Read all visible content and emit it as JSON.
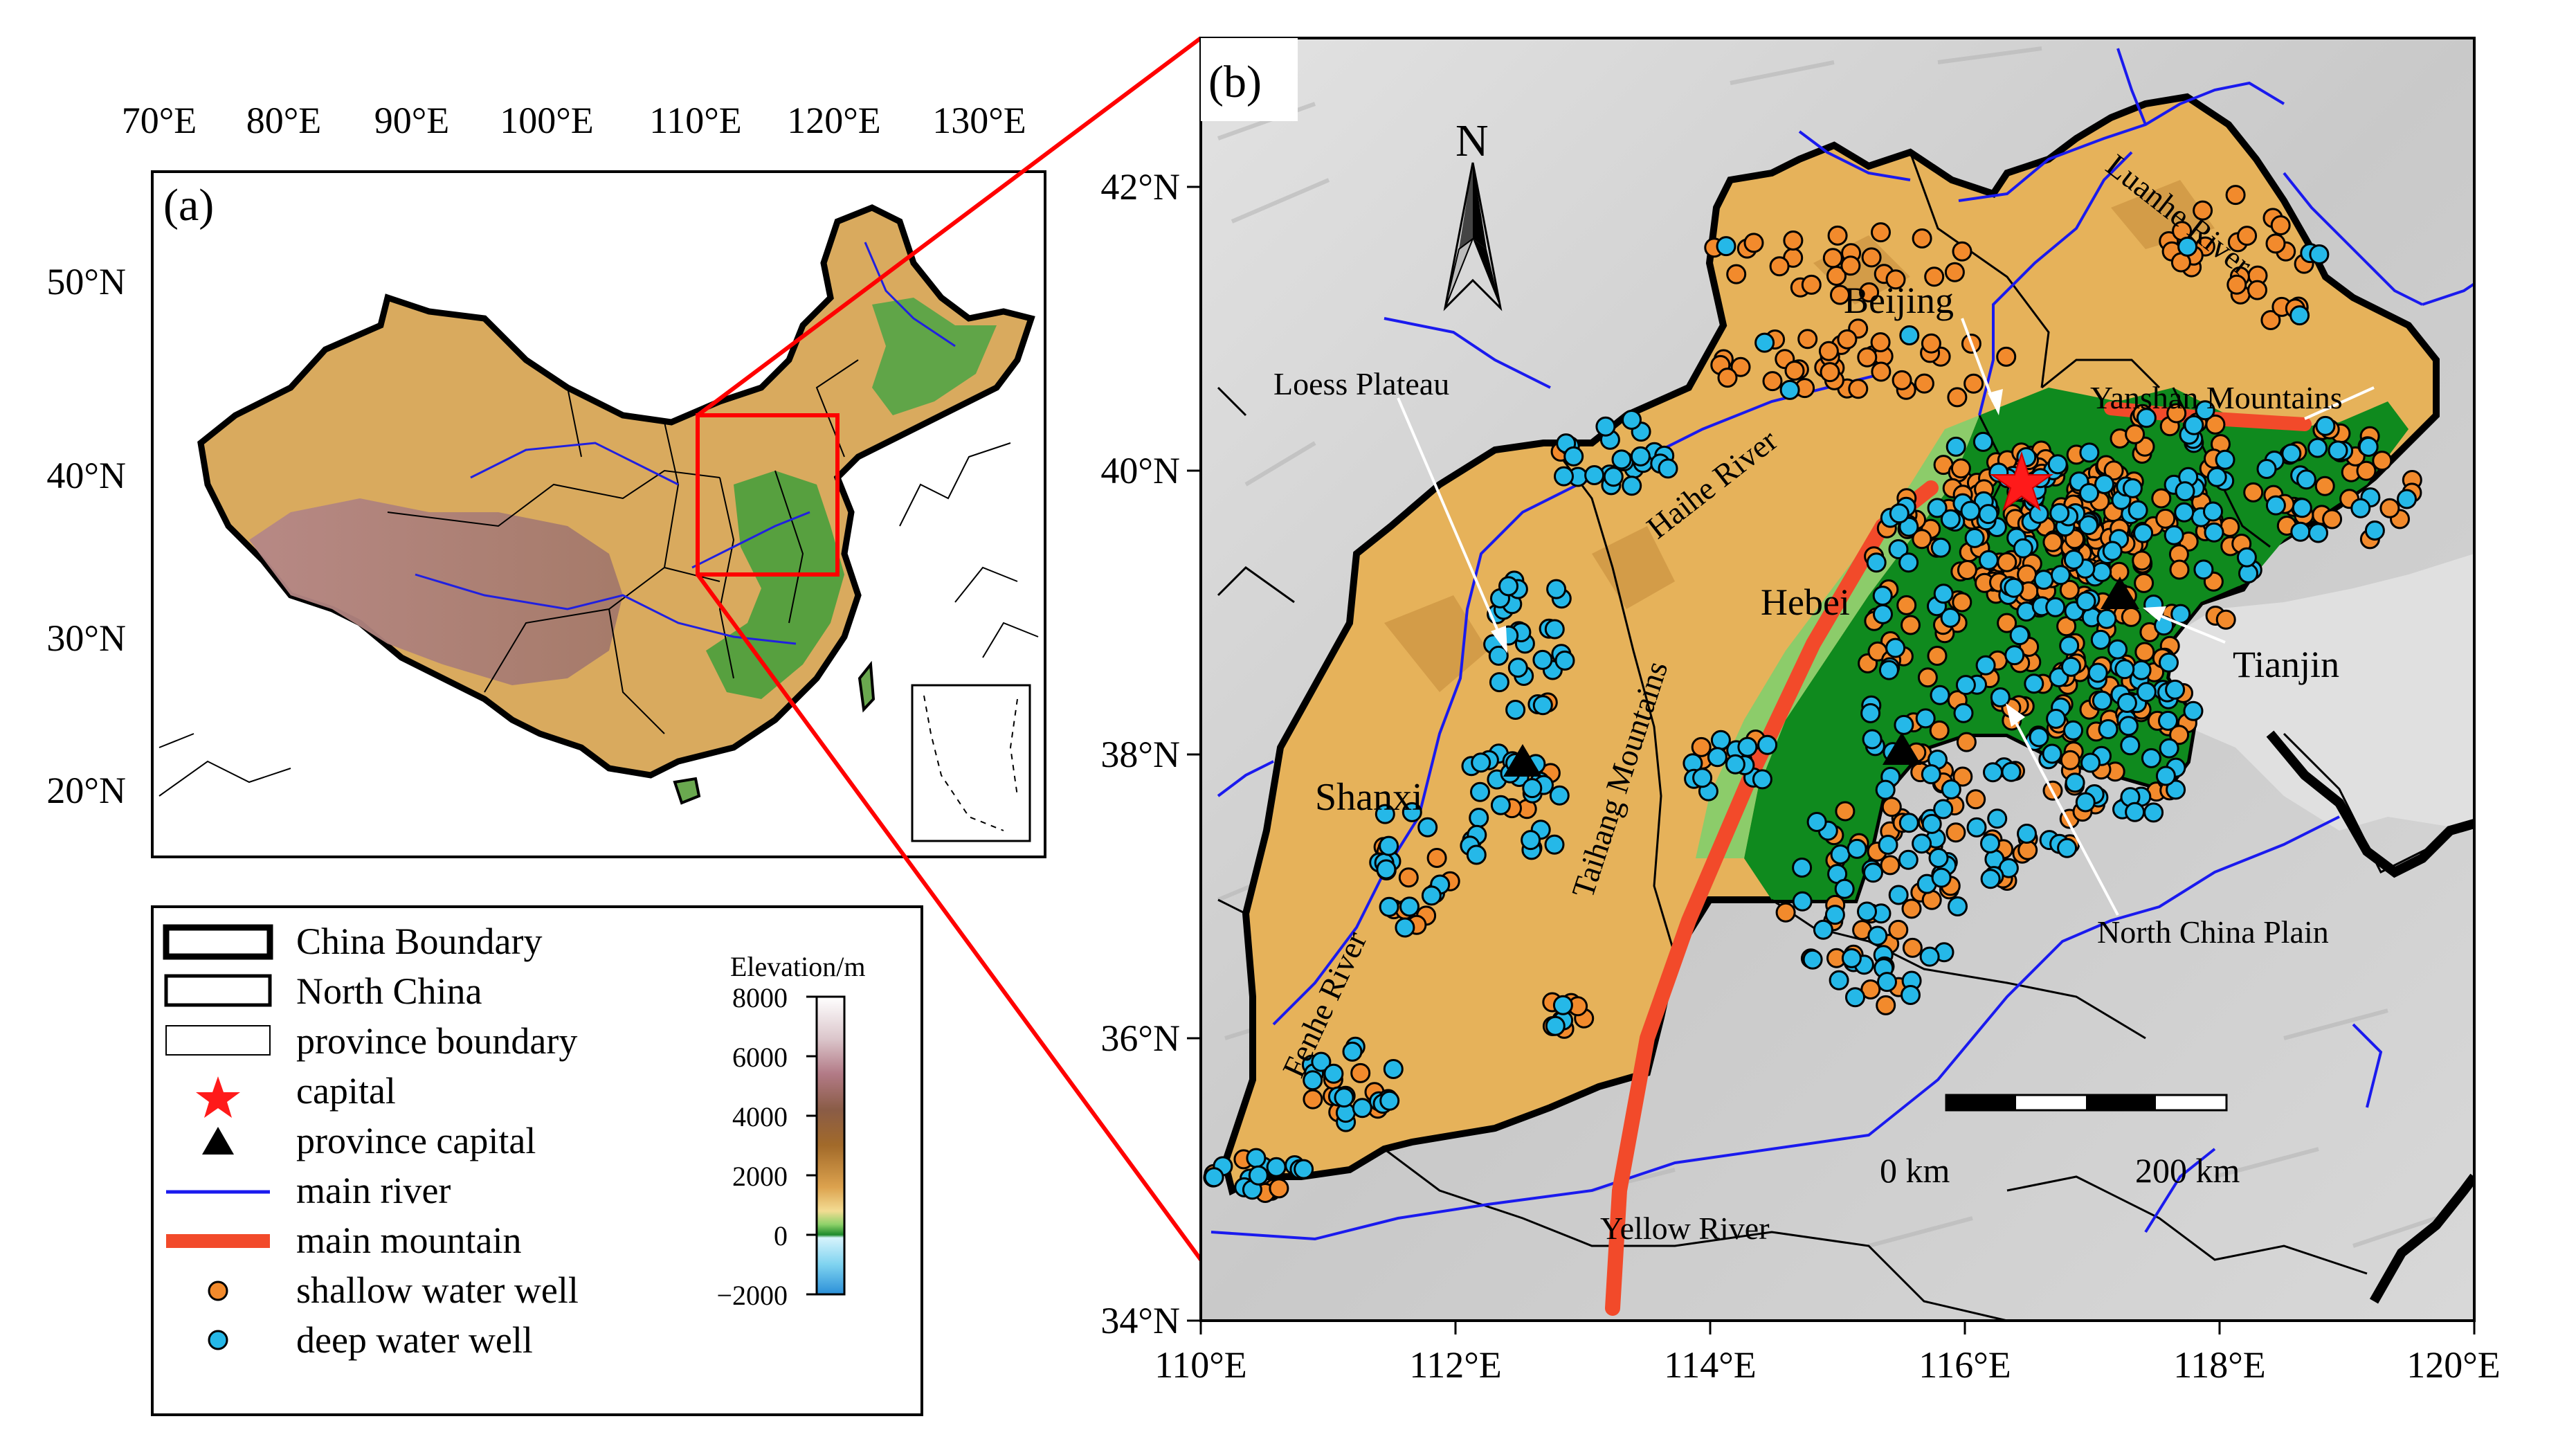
{
  "panel_a": {
    "label": "(a)",
    "lon_ticks": [
      "70°E",
      "80°E",
      "90°E",
      "100°E",
      "110°E",
      "120°E",
      "130°E"
    ],
    "lat_ticks": [
      "50°N",
      "40°N",
      "30°N",
      "20°N"
    ]
  },
  "legend": {
    "items": [
      {
        "symbol": "china-boundary",
        "label": "China Boundary"
      },
      {
        "symbol": "north-china",
        "label": "North China"
      },
      {
        "symbol": "province-boundary",
        "label": "province boundary"
      },
      {
        "symbol": "capital-star",
        "label": "capital"
      },
      {
        "symbol": "province-capital-triangle",
        "label": "province capital"
      },
      {
        "symbol": "main-river-line",
        "label": "main river"
      },
      {
        "symbol": "main-mountain-line",
        "label": "main mountain"
      },
      {
        "symbol": "shallow-well-dot",
        "label": "shallow water well"
      },
      {
        "symbol": "deep-well-dot",
        "label": "deep water well"
      }
    ],
    "colorbar": {
      "title": "Elevation/m",
      "ticks": [
        "8000",
        "6000",
        "4000",
        "2000",
        "0",
        "−2000"
      ]
    }
  },
  "panel_b": {
    "label": "(b)",
    "north_label": "N",
    "lat_ticks": [
      "42°N",
      "40°N",
      "38°N",
      "36°N",
      "34°N"
    ],
    "lon_ticks": [
      "110°E",
      "112°E",
      "114°E",
      "116°E",
      "118°E",
      "120°E"
    ],
    "place_labels": {
      "beijing": "Beijing",
      "hebei": "Hebei",
      "tianjin": "Tianjin",
      "shanxi": "Shanxi",
      "loess": "Loess Plateau",
      "ncp": "North China Plain",
      "yellow": "Yellow River",
      "luanhe": "Luanhe River",
      "yanshan": "Yanshan Mountains",
      "haihe": "Haihe River",
      "taihang": "Taihang Mountains",
      "fenhe": "Fenhe River"
    },
    "scalebar": {
      "start": "0 km",
      "end": "200 km"
    }
  },
  "colors": {
    "shallow_well": "#f28a2c",
    "deep_well": "#25b8e8",
    "mountain": "#f24a2a",
    "river": "#1a1aee",
    "capital": "#ff1a1a",
    "zoom_box": "#ff0000",
    "terrain_plain": "#0f8a1e",
    "terrain_upland": "#e9b45c"
  }
}
